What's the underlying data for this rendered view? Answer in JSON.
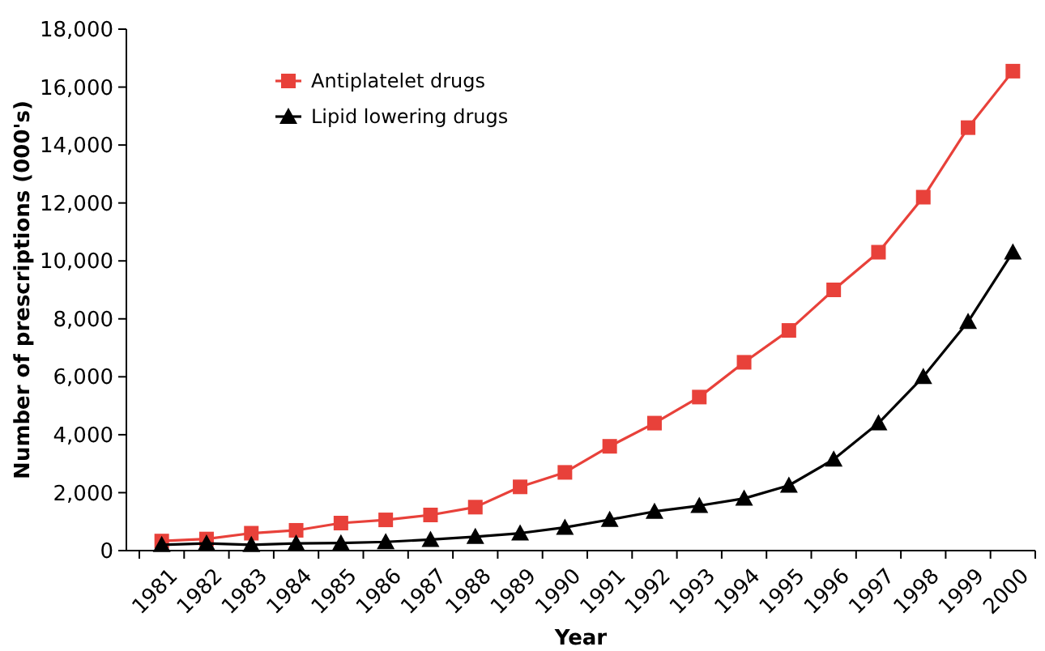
{
  "chart_data": {
    "type": "line",
    "xlabel": "Year",
    "ylabel": "Number of prescriptions (000's)",
    "categories": [
      "1981",
      "1982",
      "1983",
      "1984",
      "1985",
      "1986",
      "1987",
      "1988",
      "1989",
      "1990",
      "1991",
      "1992",
      "1993",
      "1994",
      "1995",
      "1996",
      "1997",
      "1998",
      "1999",
      "2000"
    ],
    "series": [
      {
        "name": "Antiplatelet drugs",
        "color": "#e8413a",
        "marker": "square",
        "values": [
          330,
          400,
          600,
          700,
          950,
          1060,
          1230,
          1500,
          2200,
          2700,
          3600,
          4400,
          5300,
          6500,
          7600,
          9000,
          10300,
          12200,
          14600,
          16550
        ]
      },
      {
        "name": "Lipid lowering drugs",
        "color": "#000000",
        "marker": "triangle",
        "values": [
          200,
          250,
          200,
          250,
          260,
          300,
          380,
          480,
          600,
          800,
          1070,
          1350,
          1550,
          1800,
          2250,
          3150,
          4400,
          6000,
          7900,
          10300
        ]
      }
    ],
    "ylim": [
      0,
      18000
    ],
    "yticks": [
      {
        "value": 0,
        "label": "0"
      },
      {
        "value": 2000,
        "label": "2,000"
      },
      {
        "value": 4000,
        "label": "4,000"
      },
      {
        "value": 6000,
        "label": "6,000"
      },
      {
        "value": 8000,
        "label": "8,000"
      },
      {
        "value": 10000,
        "label": "10,000"
      },
      {
        "value": 12000,
        "label": "12,000"
      },
      {
        "value": 14000,
        "label": "14,000"
      },
      {
        "value": 16000,
        "label": "16,000"
      },
      {
        "value": 18000,
        "label": "18,000"
      }
    ],
    "grid": false,
    "legend": "top left",
    "line_style": "solid"
  }
}
